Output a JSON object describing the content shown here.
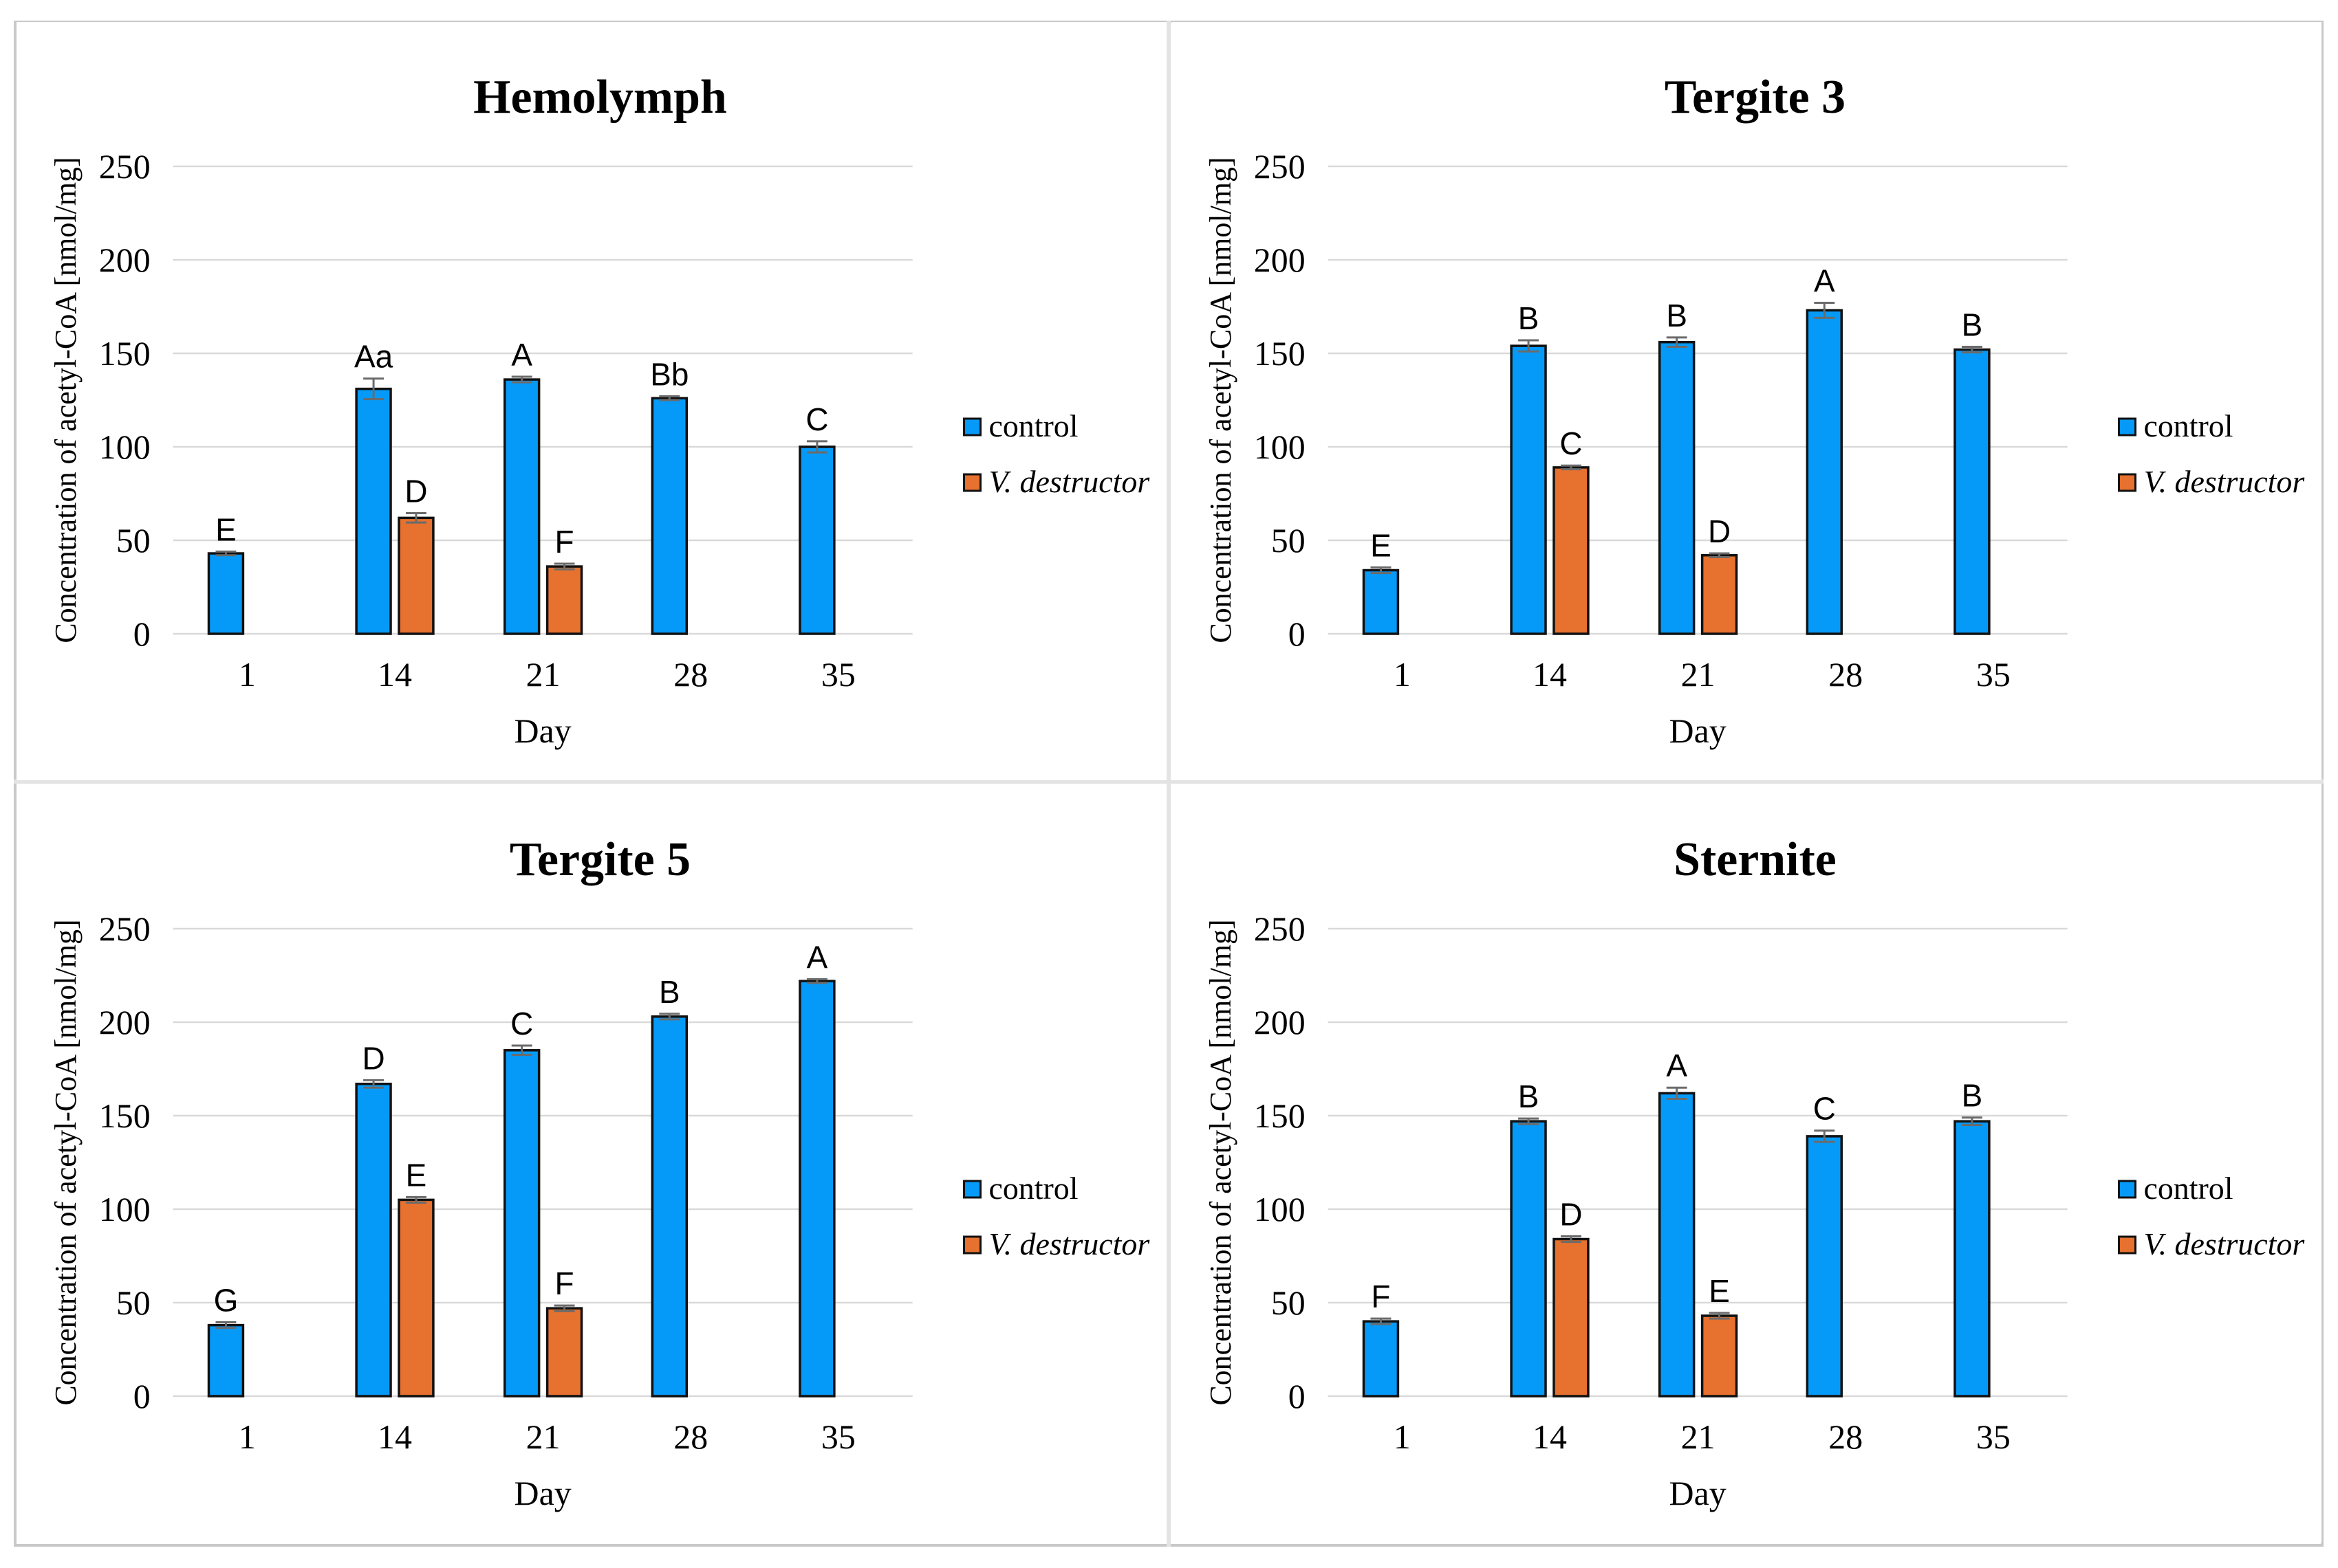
{
  "figure": {
    "y_axis_label": "Concentration of  acetyl-CoA [nmol/mg]",
    "x_axis_label": "Day",
    "legend": {
      "control_label": "control",
      "v_destructor_label": "V. destructor"
    },
    "colors": {
      "control": "#069af8",
      "v_destructor": "#e7712e",
      "bar_border": "#111111",
      "gridline": "#d9d9d9",
      "error_bar": "#6b6b6b",
      "frame": "#c9c9c9",
      "divider": "#e3e3e3",
      "text": "#000000"
    }
  },
  "chart_data": [
    {
      "type": "bar",
      "title": "Hemolymph",
      "categories": [
        "1",
        "14",
        "21",
        "28",
        "35"
      ],
      "xlabel": "Day",
      "ylabel": "Concentration of  acetyl-CoA [nmol/mg]",
      "ylim": [
        0,
        250
      ],
      "yticks": [
        0,
        50,
        100,
        150,
        200,
        250
      ],
      "grid": true,
      "legend_position": "right",
      "series": [
        {
          "name": "control",
          "color": "#069af8",
          "values": [
            43,
            131,
            136,
            126,
            100
          ],
          "errors": [
            1,
            5.5,
            1.5,
            1,
            3
          ],
          "labels": [
            "E",
            "Aa",
            "A",
            "Bb",
            "C"
          ]
        },
        {
          "name": "V. destructor",
          "color": "#e7712e",
          "values": [
            null,
            62,
            36,
            null,
            null
          ],
          "errors": [
            null,
            2.5,
            1.5,
            null,
            null
          ],
          "labels": [
            "",
            "D",
            "F",
            "",
            ""
          ]
        }
      ]
    },
    {
      "type": "bar",
      "title": "Tergite 3",
      "categories": [
        "1",
        "14",
        "21",
        "28",
        "35"
      ],
      "xlabel": "Day",
      "ylabel": "Concentration of  acetyl-CoA [nmol/mg]",
      "ylim": [
        0,
        250
      ],
      "yticks": [
        0,
        50,
        100,
        150,
        200,
        250
      ],
      "grid": true,
      "legend_position": "right",
      "series": [
        {
          "name": "control",
          "color": "#069af8",
          "values": [
            34,
            154,
            156,
            173,
            152
          ],
          "errors": [
            1.5,
            3,
            2.5,
            4,
            1.5
          ],
          "labels": [
            "E",
            "B",
            "B",
            "A",
            "B"
          ]
        },
        {
          "name": "V. destructor",
          "color": "#e7712e",
          "values": [
            null,
            89,
            42,
            null,
            null
          ],
          "errors": [
            null,
            1,
            1,
            null,
            null
          ],
          "labels": [
            "",
            "C",
            "D",
            "",
            ""
          ]
        }
      ]
    },
    {
      "type": "bar",
      "title": "Tergite 5",
      "categories": [
        "1",
        "14",
        "21",
        "28",
        "35"
      ],
      "xlabel": "Day",
      "ylabel": "Concentration of  acetyl-CoA [nmol/mg]",
      "ylim": [
        0,
        250
      ],
      "yticks": [
        0,
        50,
        100,
        150,
        200,
        250
      ],
      "grid": true,
      "legend_position": "right",
      "series": [
        {
          "name": "control",
          "color": "#069af8",
          "values": [
            38,
            167,
            185,
            203,
            222
          ],
          "errors": [
            1.5,
            2,
            2.5,
            1.5,
            1
          ],
          "labels": [
            "G",
            "D",
            "C",
            "B",
            "A"
          ]
        },
        {
          "name": "V. destructor",
          "color": "#e7712e",
          "values": [
            null,
            105,
            47,
            null,
            null
          ],
          "errors": [
            null,
            1.5,
            1.5,
            null,
            null
          ],
          "labels": [
            "",
            "E",
            "F",
            "",
            ""
          ]
        }
      ]
    },
    {
      "type": "bar",
      "title": "Sternite",
      "categories": [
        "1",
        "14",
        "21",
        "28",
        "35"
      ],
      "xlabel": "Day",
      "ylabel": "Concentration of  acetyl-CoA [nmol/mg]",
      "ylim": [
        0,
        250
      ],
      "yticks": [
        0,
        50,
        100,
        150,
        200,
        250
      ],
      "grid": true,
      "legend_position": "right",
      "series": [
        {
          "name": "control",
          "color": "#069af8",
          "values": [
            40,
            147,
            162,
            139,
            147
          ],
          "errors": [
            1.5,
            1.5,
            3,
            3,
            2
          ],
          "labels": [
            "F",
            "B",
            "A",
            "C",
            "B"
          ]
        },
        {
          "name": "V. destructor",
          "color": "#e7712e",
          "values": [
            null,
            84,
            43,
            null,
            null
          ],
          "errors": [
            null,
            1.5,
            1.5,
            null,
            null
          ],
          "labels": [
            "",
            "D",
            "E",
            "",
            ""
          ]
        }
      ]
    }
  ]
}
